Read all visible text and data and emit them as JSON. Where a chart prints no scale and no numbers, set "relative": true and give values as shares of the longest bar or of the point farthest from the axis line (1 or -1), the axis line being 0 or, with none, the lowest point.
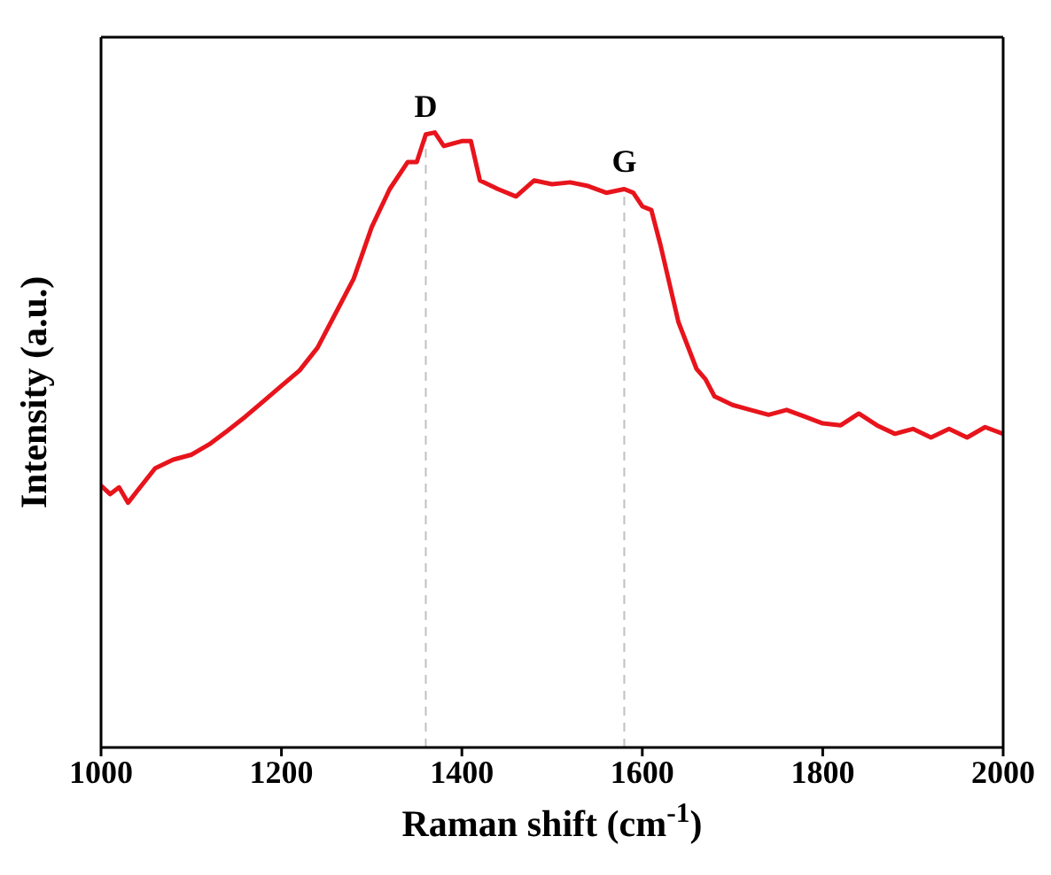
{
  "chart_data": {
    "type": "line",
    "xlabel": "Raman shift (cm$^{-1}$)",
    "ylabel": "Intensity (a.u.)",
    "relative": true,
    "xlim": [
      1000,
      2000
    ],
    "xticks": [
      1000,
      1200,
      1400,
      1600,
      1800,
      2000
    ],
    "marker": "none",
    "line_style": "solid",
    "ref_lines": [
      {
        "axis": "x",
        "value": 1360,
        "label": "D",
        "color": "#c0c0c0",
        "line_style": "dashed"
      },
      {
        "axis": "x",
        "value": 1580,
        "label": "G",
        "color": "#c0c0c0",
        "line_style": "dashed"
      }
    ],
    "series": [
      {
        "color": "#e8141c",
        "x": [
          1000,
          1010,
          1020,
          1030,
          1040,
          1060,
          1080,
          1100,
          1120,
          1140,
          1160,
          1180,
          1200,
          1220,
          1240,
          1260,
          1280,
          1300,
          1320,
          1340,
          1350,
          1360,
          1370,
          1380,
          1400,
          1410,
          1420,
          1440,
          1460,
          1480,
          1500,
          1520,
          1540,
          1560,
          1580,
          1590,
          1600,
          1610,
          1620,
          1640,
          1660,
          1670,
          1680,
          1700,
          1720,
          1740,
          1760,
          1780,
          1800,
          1820,
          1840,
          1860,
          1880,
          1900,
          1920,
          1940,
          1960,
          1980,
          2000
        ],
        "values": [
          0.426,
          0.412,
          0.423,
          0.398,
          0.417,
          0.454,
          0.468,
          0.476,
          0.493,
          0.515,
          0.538,
          0.563,
          0.588,
          0.613,
          0.65,
          0.706,
          0.762,
          0.846,
          0.908,
          0.952,
          0.952,
          0.997,
          1,
          0.978,
          0.986,
          0.986,
          0.922,
          0.908,
          0.896,
          0.922,
          0.916,
          0.919,
          0.913,
          0.902,
          0.908,
          0.902,
          0.88,
          0.874,
          0.818,
          0.692,
          0.616,
          0.599,
          0.571,
          0.557,
          0.549,
          0.541,
          0.549,
          0.538,
          0.527,
          0.524,
          0.543,
          0.524,
          0.51,
          0.518,
          0.504,
          0.518,
          0.504,
          0.521,
          0.51
        ]
      }
    ]
  }
}
